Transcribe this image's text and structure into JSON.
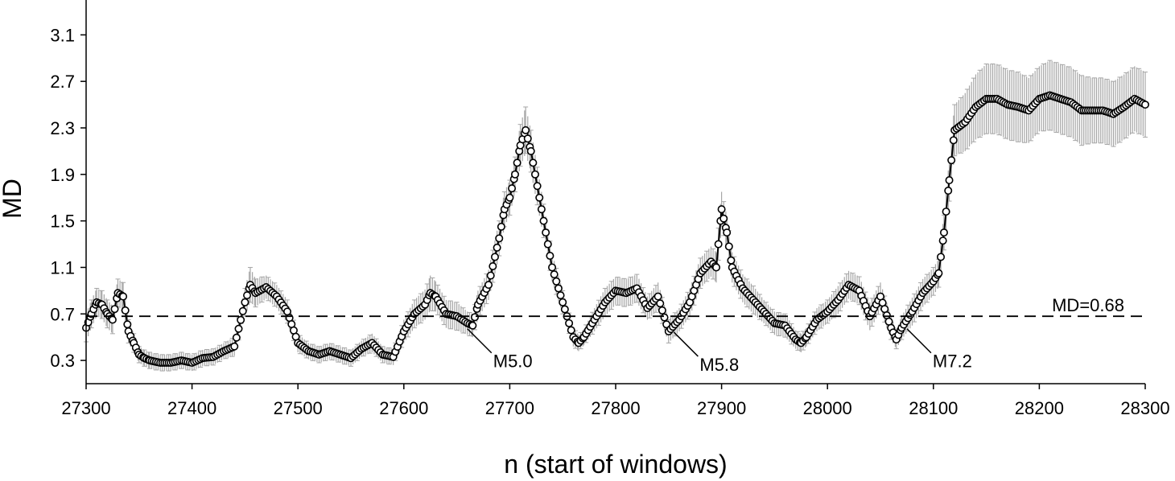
{
  "chart_data": {
    "type": "scatter",
    "title": "",
    "xlabel": "n (start of windows)",
    "ylabel": "MD",
    "xlim": [
      27300,
      28300
    ],
    "ylim": [
      0.1,
      3.4
    ],
    "x_ticks": [
      27300,
      27400,
      27500,
      27600,
      27700,
      27800,
      27900,
      28000,
      28100,
      28200,
      28300
    ],
    "x_tick_labels": [
      "27300",
      "27400",
      "27500",
      "27600",
      "27700",
      "27800",
      "27900",
      "28000",
      "28100",
      "28200",
      "28300"
    ],
    "y_ticks": [
      0.3,
      0.7,
      1.1,
      1.5,
      1.9,
      2.3,
      2.7,
      3.1
    ],
    "y_tick_labels": [
      "0.3",
      "0.7",
      "1.1",
      "1.5",
      "1.9",
      "2.3",
      "2.7",
      "3.1"
    ],
    "grid": false,
    "legend": "none",
    "series": [
      {
        "marker": "open-circle",
        "connected": true,
        "error_bars": true,
        "x": [
          27300,
          27305,
          27310,
          27315,
          27320,
          27325,
          27330,
          27335,
          27340,
          27345,
          27350,
          27355,
          27360,
          27370,
          27380,
          27390,
          27400,
          27410,
          27420,
          27430,
          27440,
          27450,
          27455,
          27460,
          27470,
          27480,
          27490,
          27500,
          27510,
          27520,
          27530,
          27540,
          27550,
          27560,
          27570,
          27580,
          27590,
          27600,
          27610,
          27620,
          27625,
          27630,
          27640,
          27650,
          27660,
          27665,
          27670,
          27680,
          27690,
          27695,
          27700,
          27705,
          27710,
          27715,
          27720,
          27730,
          27740,
          27750,
          27760,
          27765,
          27770,
          27780,
          27790,
          27800,
          27810,
          27820,
          27830,
          27840,
          27850,
          27860,
          27870,
          27880,
          27890,
          27895,
          27900,
          27905,
          27910,
          27920,
          27930,
          27940,
          27950,
          27960,
          27970,
          27975,
          27980,
          27990,
          28000,
          28010,
          28020,
          28030,
          28040,
          28050,
          28060,
          28065,
          28070,
          28080,
          28090,
          28100,
          28105,
          28110,
          28115,
          28120,
          28130,
          28140,
          28150,
          28160,
          28170,
          28180,
          28190,
          28200,
          28210,
          28220,
          28230,
          28240,
          28250,
          28260,
          28270,
          28280,
          28290,
          28300
        ],
        "y": [
          0.58,
          0.7,
          0.8,
          0.78,
          0.7,
          0.65,
          0.88,
          0.85,
          0.55,
          0.45,
          0.35,
          0.32,
          0.3,
          0.28,
          0.28,
          0.3,
          0.28,
          0.32,
          0.33,
          0.38,
          0.42,
          0.8,
          0.95,
          0.88,
          0.93,
          0.85,
          0.72,
          0.45,
          0.38,
          0.35,
          0.38,
          0.35,
          0.32,
          0.4,
          0.45,
          0.35,
          0.33,
          0.55,
          0.7,
          0.78,
          0.88,
          0.85,
          0.7,
          0.68,
          0.62,
          0.6,
          0.78,
          0.95,
          1.35,
          1.6,
          1.7,
          1.9,
          2.15,
          2.28,
          2.1,
          1.6,
          1.1,
          0.8,
          0.5,
          0.45,
          0.5,
          0.65,
          0.8,
          0.9,
          0.88,
          0.92,
          0.75,
          0.85,
          0.55,
          0.65,
          0.8,
          1.05,
          1.15,
          1.1,
          1.6,
          1.4,
          1.1,
          0.92,
          0.82,
          0.72,
          0.62,
          0.6,
          0.48,
          0.45,
          0.5,
          0.65,
          0.72,
          0.82,
          0.95,
          0.9,
          0.68,
          0.85,
          0.58,
          0.48,
          0.58,
          0.72,
          0.88,
          0.98,
          1.05,
          1.4,
          1.85,
          2.28,
          2.35,
          2.48,
          2.55,
          2.55,
          2.5,
          2.48,
          2.45,
          2.55,
          2.58,
          2.55,
          2.52,
          2.45,
          2.45,
          2.45,
          2.42,
          2.48,
          2.55,
          2.5
        ],
        "err": [
          0.12,
          0.12,
          0.12,
          0.12,
          0.12,
          0.12,
          0.12,
          0.12,
          0.1,
          0.08,
          0.07,
          0.07,
          0.07,
          0.07,
          0.07,
          0.07,
          0.07,
          0.07,
          0.07,
          0.07,
          0.08,
          0.12,
          0.15,
          0.12,
          0.1,
          0.1,
          0.1,
          0.08,
          0.07,
          0.07,
          0.07,
          0.07,
          0.07,
          0.07,
          0.08,
          0.07,
          0.07,
          0.1,
          0.12,
          0.13,
          0.15,
          0.13,
          0.12,
          0.12,
          0.1,
          0.1,
          0.12,
          0.13,
          0.15,
          0.15,
          0.15,
          0.15,
          0.18,
          0.2,
          0.18,
          0.15,
          0.12,
          0.1,
          0.08,
          0.07,
          0.07,
          0.1,
          0.12,
          0.12,
          0.12,
          0.12,
          0.1,
          0.12,
          0.1,
          0.1,
          0.12,
          0.13,
          0.13,
          0.13,
          0.15,
          0.14,
          0.13,
          0.12,
          0.12,
          0.1,
          0.1,
          0.1,
          0.08,
          0.08,
          0.08,
          0.1,
          0.1,
          0.12,
          0.12,
          0.12,
          0.12,
          0.12,
          0.1,
          0.08,
          0.1,
          0.12,
          0.12,
          0.12,
          0.12,
          0.15,
          0.18,
          0.22,
          0.25,
          0.28,
          0.3,
          0.3,
          0.3,
          0.3,
          0.28,
          0.28,
          0.3,
          0.3,
          0.3,
          0.3,
          0.28,
          0.28,
          0.28,
          0.28,
          0.28,
          0.28
        ]
      }
    ],
    "reference_lines": [
      {
        "type": "horizontal",
        "y": 0.68,
        "style": "dashed",
        "label": "MD=0.68"
      }
    ],
    "annotations": [
      {
        "text": "M5.0",
        "x": 27660,
        "y": 0.6
      },
      {
        "text": "M5.8",
        "x": 27855,
        "y": 0.57
      },
      {
        "text": "M7.2",
        "x": 28075,
        "y": 0.6
      }
    ]
  },
  "colors": {
    "line": "#000000",
    "marker_fill": "#ffffff",
    "marker_stroke": "#000000",
    "error_bar": "#a6a6a6",
    "axis": "#000000"
  }
}
